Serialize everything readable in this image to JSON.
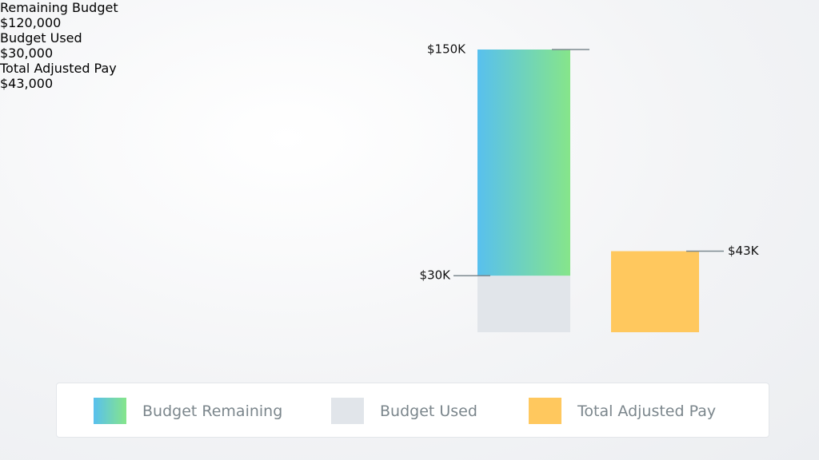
{
  "stats": [
    {
      "label": "Remaining Budget",
      "value": "$120,000"
    },
    {
      "label": "Budget Used",
      "value": "$30,000"
    },
    {
      "label": "Total Adjusted Pay",
      "value": "$43,000"
    }
  ],
  "chart_data": {
    "type": "stacked-bar",
    "categories": [
      null,
      null
    ],
    "series": [
      {
        "name": "Budget Remaining",
        "color": [
          "#58c0ee",
          "#86e58a"
        ],
        "values": [
          120000,
          null
        ]
      },
      {
        "name": "Budget Used",
        "color": "#e1e5ea",
        "values": [
          30000,
          null
        ]
      },
      {
        "name": "Total Adjusted Pay",
        "color": "#ffc85e",
        "values": [
          null,
          43000
        ]
      }
    ],
    "ylim": [
      0,
      150000
    ],
    "annotations": [
      {
        "value": 150000,
        "label": "$150K"
      },
      {
        "value": 30000,
        "label": "$30K"
      },
      {
        "value": 43000,
        "label": "$43K"
      }
    ]
  }
}
